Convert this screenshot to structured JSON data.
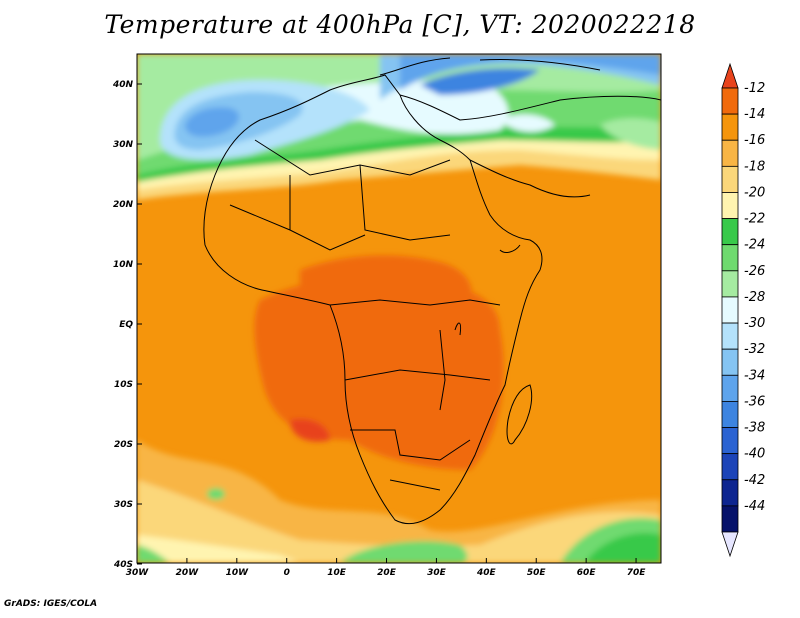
{
  "title": "Temperature at 400hPa [C], VT: 2020022218",
  "credit": "GrADS: IGES/COLA",
  "map": {
    "lon_labels": [
      "30W",
      "20W",
      "10W",
      "0",
      "10E",
      "20E",
      "30E",
      "40E",
      "50E",
      "60E",
      "70E"
    ],
    "lat_labels": [
      "40N",
      "30N",
      "20N",
      "10N",
      "EQ",
      "10S",
      "20S",
      "30S",
      "40S"
    ]
  },
  "colorbar": {
    "labels": [
      "-12",
      "-14",
      "-16",
      "-18",
      "-20",
      "-22",
      "-24",
      "-26",
      "-28",
      "-30",
      "-32",
      "-34",
      "-36",
      "-38",
      "-40",
      "-42",
      "-44"
    ],
    "colors": [
      "#e8431c",
      "#f06a0c",
      "#f5950c",
      "#f8b545",
      "#fbd77a",
      "#fff4b0",
      "#38c94a",
      "#6fda6f",
      "#a5eba1",
      "#e6fbff",
      "#b4e2fb",
      "#85c4f2",
      "#5ea4ec",
      "#3d84e0",
      "#2b63d2",
      "#1c44b8",
      "#0d2590",
      "#06126a",
      "#e6e6ff"
    ]
  }
}
